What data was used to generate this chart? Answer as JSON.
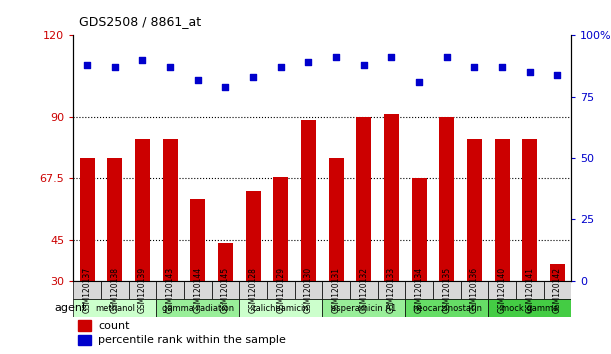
{
  "title": "GDS2508 / 8861_at",
  "categories": [
    "GSM120137",
    "GSM120138",
    "GSM120139",
    "GSM120143",
    "GSM120144",
    "GSM120145",
    "GSM120128",
    "GSM120129",
    "GSM120130",
    "GSM120131",
    "GSM120132",
    "GSM120133",
    "GSM120134",
    "GSM120135",
    "GSM120136",
    "GSM120140",
    "GSM120141",
    "GSM120142"
  ],
  "bar_values": [
    75,
    75,
    82,
    82,
    60,
    44,
    63,
    68,
    89,
    75,
    90,
    91,
    67.5,
    90,
    82,
    82,
    82,
    36
  ],
  "dot_pct": [
    88,
    87,
    90,
    87,
    82,
    79,
    83,
    87,
    89,
    91,
    88,
    91,
    81,
    91,
    87,
    87,
    85,
    84
  ],
  "ylim_left": [
    30,
    120
  ],
  "ylim_right": [
    0,
    100
  ],
  "yticks_left": [
    30,
    45,
    67.5,
    90,
    120
  ],
  "ytick_labels_left": [
    "30",
    "45",
    "67.5",
    "90",
    "120"
  ],
  "yticks_right": [
    0,
    25,
    50,
    75,
    100
  ],
  "ytick_labels_right": [
    "0",
    "25",
    "50",
    "75",
    "100%"
  ],
  "hlines": [
    45,
    67.5,
    90
  ],
  "bar_color": "#CC0000",
  "dot_color": "#0000CC",
  "agent_groups": [
    {
      "label": "methanol",
      "start": 0,
      "end": 3,
      "color": "#CCFFCC"
    },
    {
      "label": "gamma radiation",
      "start": 3,
      "end": 6,
      "color": "#99EE99"
    },
    {
      "label": "calicheamicin",
      "start": 6,
      "end": 9,
      "color": "#CCFFCC"
    },
    {
      "label": "esperamicin A1",
      "start": 9,
      "end": 12,
      "color": "#99EE99"
    },
    {
      "label": "neocarzinostatin",
      "start": 12,
      "end": 15,
      "color": "#66DD66"
    },
    {
      "label": "mock gamma",
      "start": 15,
      "end": 18,
      "color": "#44CC44"
    }
  ],
  "legend_count_color": "#CC0000",
  "legend_dot_color": "#0000CC",
  "agent_label": "agent",
  "background_color": "#ffffff",
  "tick_bg_color": "#d8d8d8"
}
